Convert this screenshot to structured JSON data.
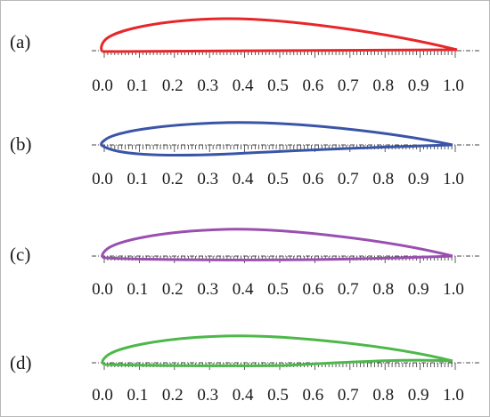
{
  "panels": [
    {
      "label": "(a)",
      "color": "#e8262a"
    },
    {
      "label": "(b)",
      "color": "#3a55a8"
    },
    {
      "label": "(c)",
      "color": "#9a4fb0"
    },
    {
      "label": "(d)",
      "color": "#4cb84a"
    }
  ],
  "axis": {
    "tick_labels": [
      "0.0",
      "0.1",
      "0.2",
      "0.3",
      "0.4",
      "0.5",
      "0.6",
      "0.7",
      "0.8",
      "0.9",
      "1.0"
    ],
    "range": [
      0,
      1
    ],
    "major_step": 0.1,
    "minor_step": 0.01
  }
}
